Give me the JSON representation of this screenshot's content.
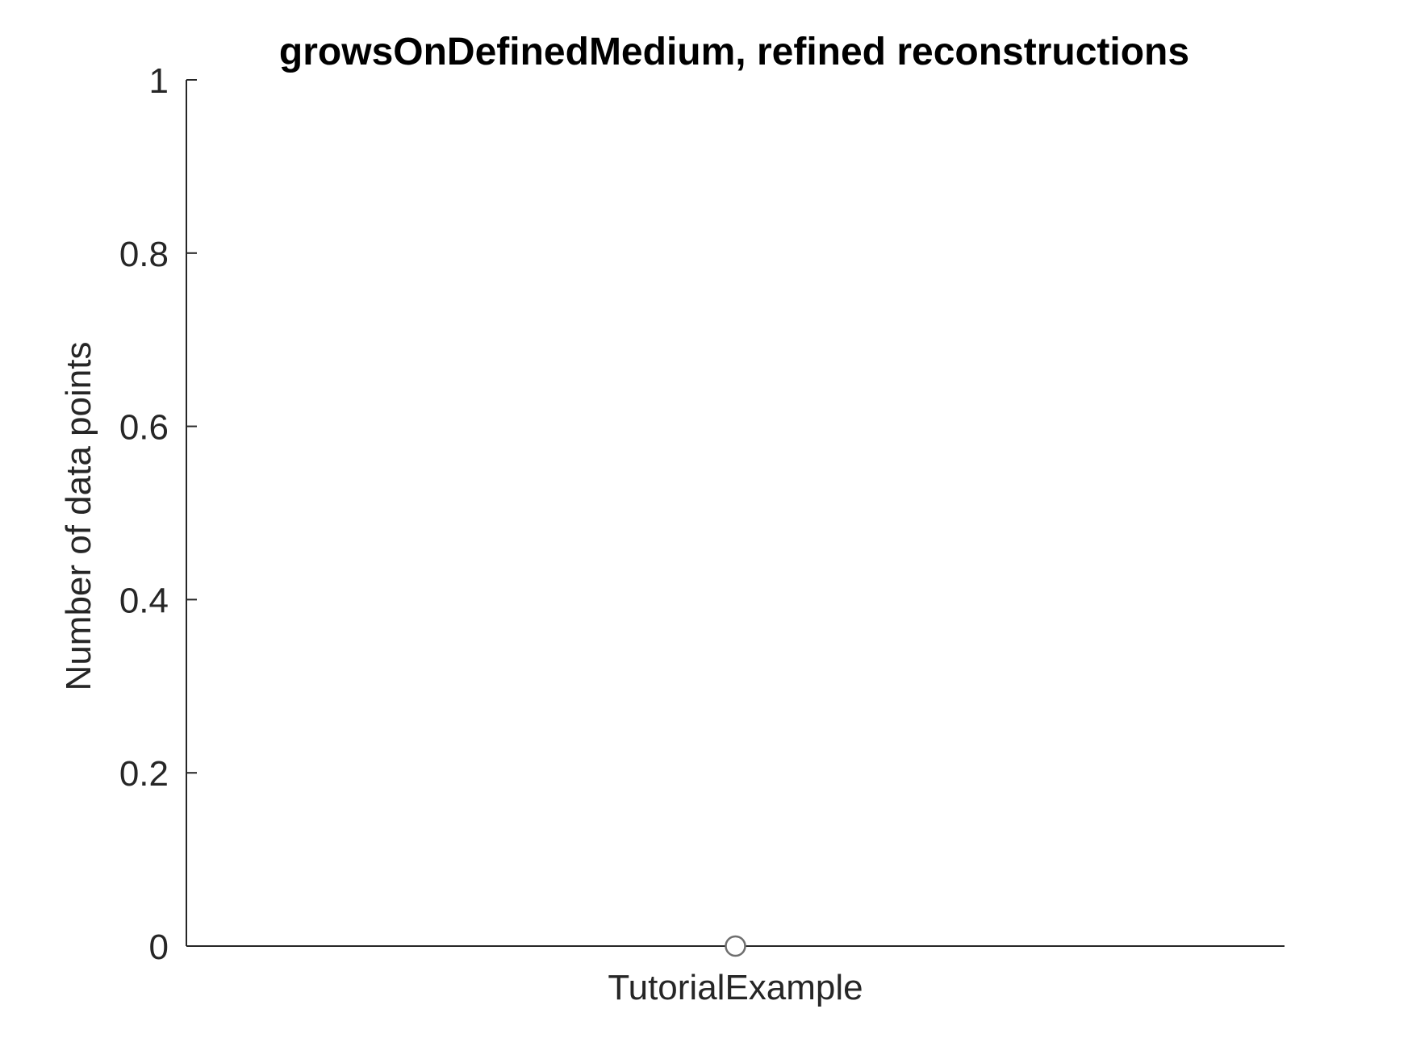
{
  "chart_data": {
    "type": "scatter",
    "title": "growsOnDefinedMedium, refined reconstructions",
    "xlabel": "",
    "ylabel": "Number of data points",
    "categories": [
      "TutorialExample"
    ],
    "series": [
      {
        "values": [
          0
        ]
      }
    ],
    "ylim": [
      0,
      1
    ],
    "yticks": [
      0,
      0.2,
      0.4,
      0.6,
      0.8,
      1
    ],
    "ytick_labels": [
      "0",
      "0.2",
      "0.4",
      "0.6",
      "0.8",
      "1"
    ],
    "grid": false,
    "legend": "none",
    "colors": {
      "axis": "#262626",
      "marker_edge": "#6e6e6e",
      "marker_fill": "#ffffff",
      "title": "#000000"
    }
  }
}
